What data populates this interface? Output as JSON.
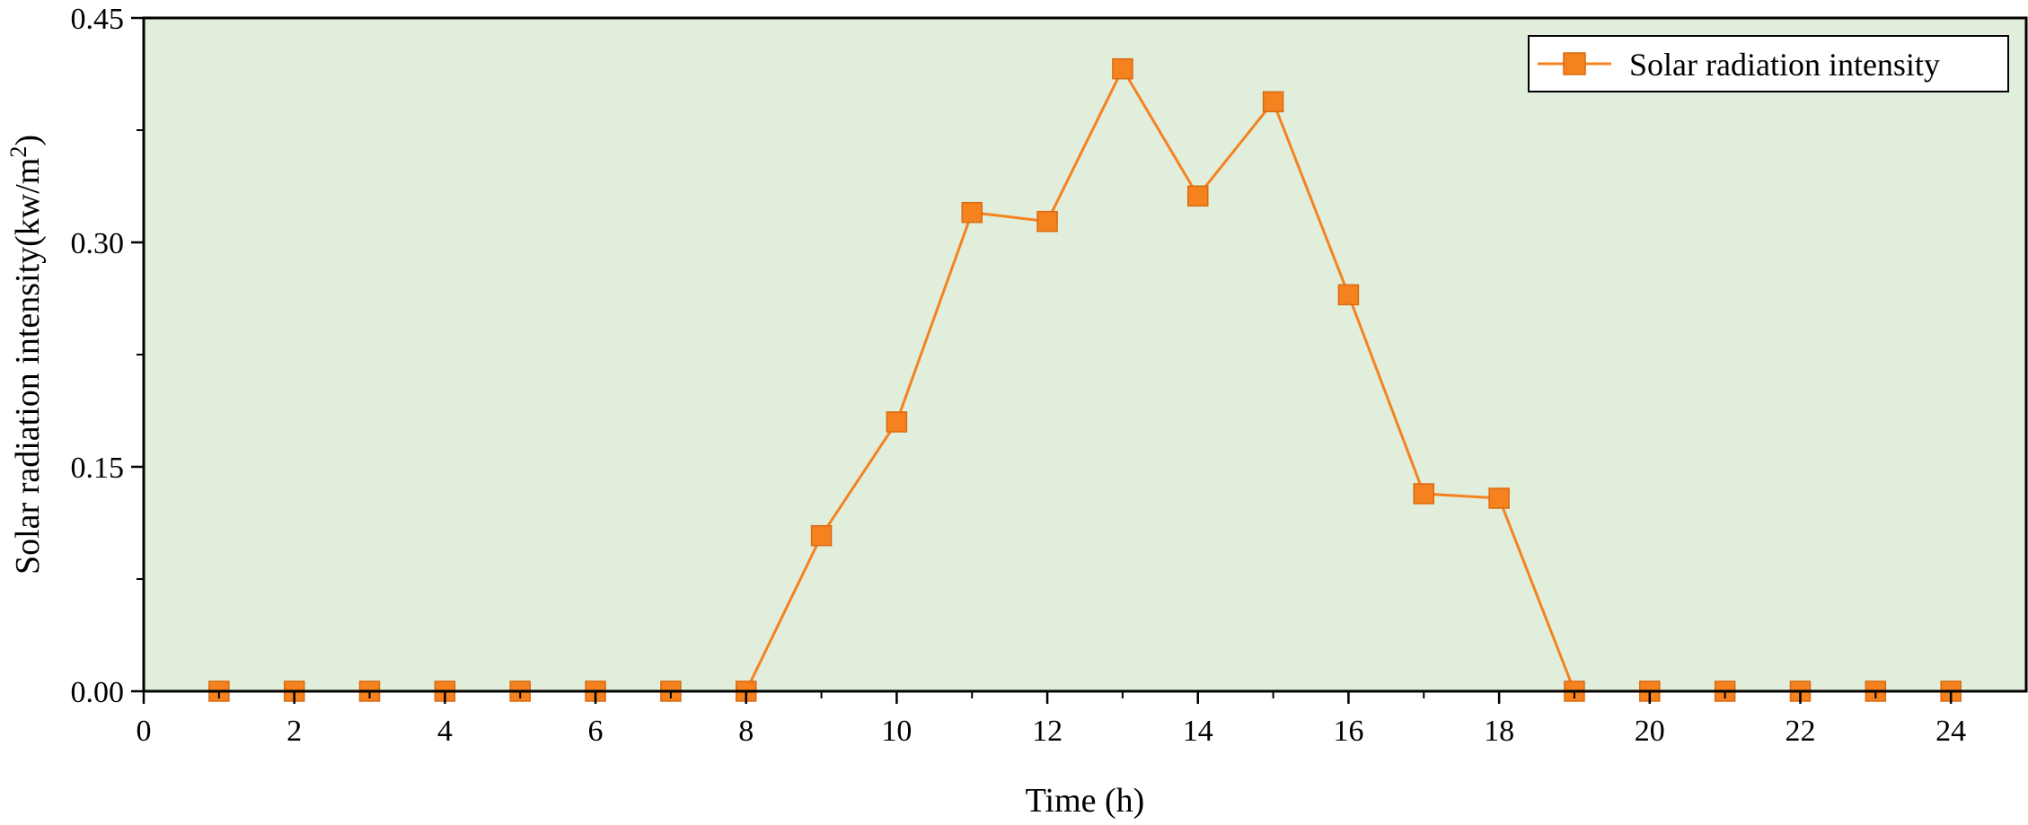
{
  "chart_data": {
    "type": "line",
    "title": "",
    "xlabel": "Time (h)",
    "ylabel": "Solar radiation intensity(kw/m",
    "ylabel_superscript": "2",
    "ylabel_suffix": ")",
    "xlim": [
      0,
      25
    ],
    "ylim": [
      0,
      0.45
    ],
    "x_ticks": [
      0,
      2,
      4,
      6,
      8,
      10,
      12,
      14,
      16,
      18,
      20,
      22,
      24
    ],
    "x_tick_labels": [
      "0",
      "2",
      "4",
      "6",
      "8",
      "10",
      "12",
      "14",
      "16",
      "18",
      "20",
      "22",
      "24"
    ],
    "y_ticks": [
      0,
      0.15,
      0.3,
      0.45
    ],
    "y_tick_labels": [
      "0.00",
      "0.15",
      "0.30",
      "0.45"
    ],
    "grid": false,
    "plot_background": "#e0eedb",
    "legend_position": "top-right",
    "series": [
      {
        "name": "Solar radiation intensity",
        "color": "#f5821f",
        "marker": "square",
        "x": [
          1,
          2,
          3,
          4,
          5,
          6,
          7,
          8,
          9,
          10,
          11,
          12,
          13,
          14,
          15,
          16,
          17,
          18,
          19,
          20,
          21,
          22,
          23,
          24
        ],
        "y": [
          0,
          0,
          0,
          0,
          0,
          0,
          0,
          0,
          0.104,
          0.18,
          0.32,
          0.314,
          0.416,
          0.331,
          0.394,
          0.265,
          0.132,
          0.129,
          0,
          0,
          0,
          0,
          0,
          0
        ]
      }
    ]
  }
}
